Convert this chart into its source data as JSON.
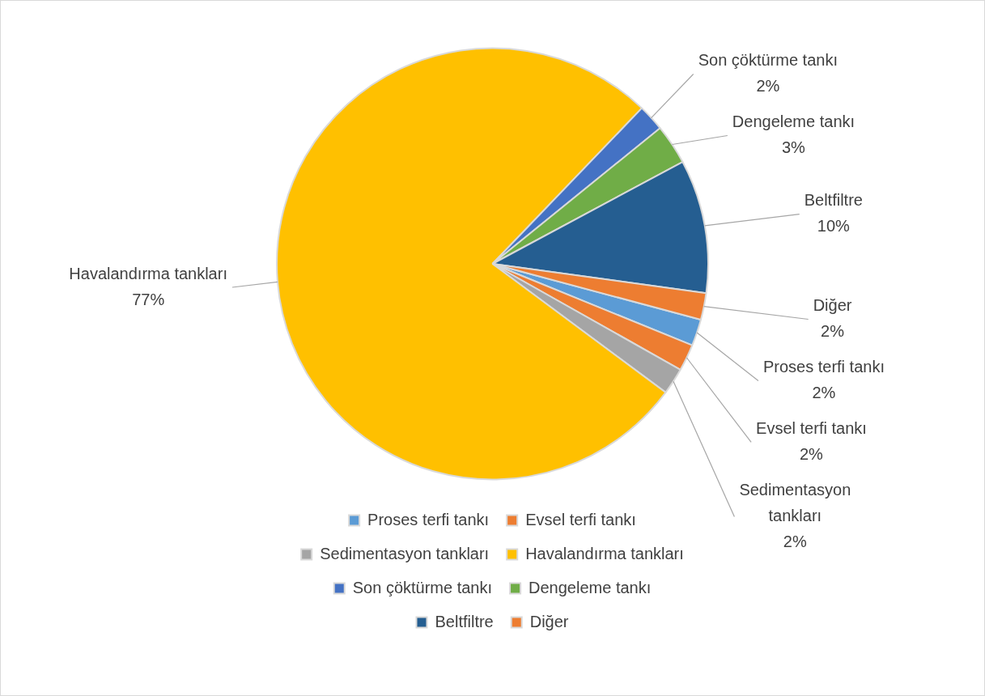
{
  "chart_data": {
    "type": "pie",
    "categories": [
      "Proses terfi tankı",
      "Evsel terfi tankı",
      "Sedimentasyon tankları",
      "Havalandırma tankları",
      "Son çöktürme tankı",
      "Dengeleme tankı",
      "Beltfiltre",
      "Diğer"
    ],
    "values": [
      2,
      2,
      2,
      77,
      2,
      3,
      10,
      2
    ],
    "value_labels": [
      "2%",
      "2%",
      "2%",
      "77%",
      "2%",
      "3%",
      "10%",
      "2%"
    ],
    "colors": [
      "#5b9bd5",
      "#ed7d31",
      "#a5a5a5",
      "#ffc000",
      "#4472c4",
      "#70ad47",
      "#255e91",
      "#ed7d31"
    ],
    "legend": "bottom"
  }
}
